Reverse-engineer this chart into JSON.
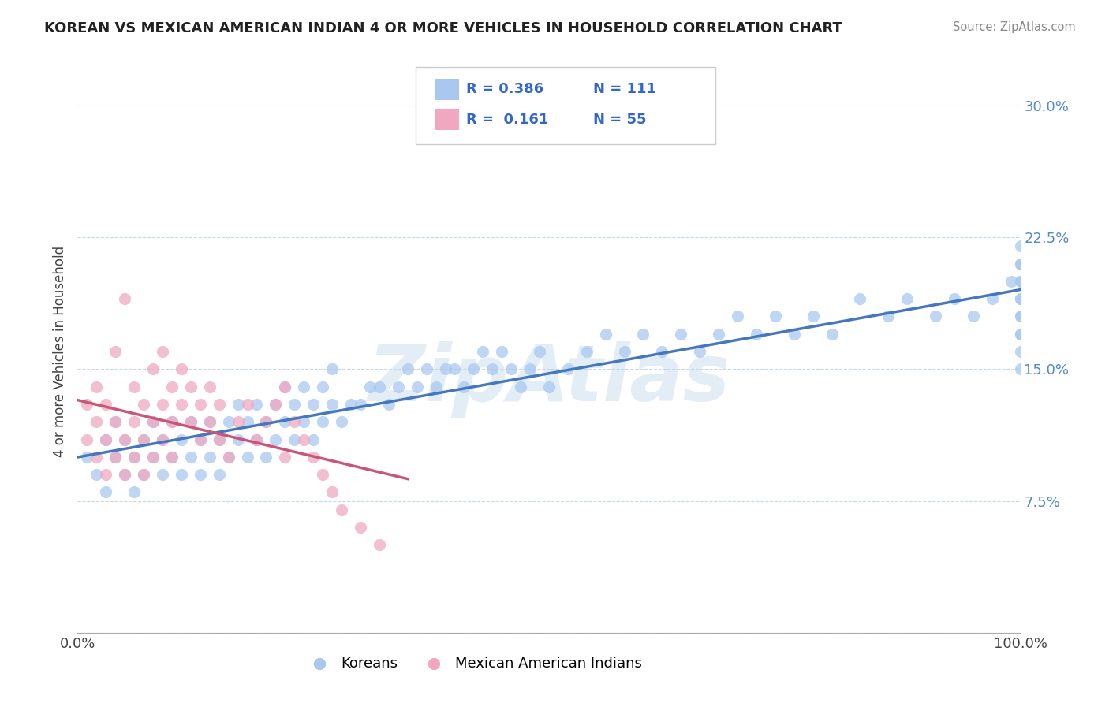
{
  "title": "KOREAN VS MEXICAN AMERICAN INDIAN 4 OR MORE VEHICLES IN HOUSEHOLD CORRELATION CHART",
  "source": "Source: ZipAtlas.com",
  "ylabel": "4 or more Vehicles in Household",
  "watermark": "ZipAtlas",
  "xlim": [
    0,
    100
  ],
  "ylim": [
    0,
    32
  ],
  "yticks": [
    0,
    7.5,
    15.0,
    22.5,
    30.0
  ],
  "yticklabels": [
    "",
    "7.5%",
    "15.0%",
    "22.5%",
    "30.0%"
  ],
  "legend_r1": "R = 0.386",
  "legend_n1": "N = 111",
  "legend_r2": "R =  0.161",
  "legend_n2": "N = 55",
  "korean_color": "#a8c8f0",
  "mexican_color": "#f0a8c0",
  "trend_korean_color": "#4477bb",
  "trend_mexican_color": "#cc5577",
  "background_color": "#ffffff",
  "grid_color": "#c8d8e8",
  "legend_label1": "Koreans",
  "legend_label2": "Mexican American Indians",
  "korean_x": [
    1,
    2,
    3,
    3,
    4,
    4,
    5,
    5,
    6,
    6,
    7,
    7,
    8,
    8,
    9,
    9,
    10,
    10,
    11,
    11,
    12,
    12,
    13,
    13,
    14,
    14,
    15,
    15,
    16,
    16,
    17,
    17,
    18,
    18,
    19,
    19,
    20,
    20,
    21,
    21,
    22,
    22,
    23,
    23,
    24,
    24,
    25,
    25,
    26,
    26,
    27,
    27,
    28,
    29,
    30,
    31,
    32,
    33,
    34,
    35,
    36,
    37,
    38,
    39,
    40,
    41,
    42,
    43,
    44,
    45,
    46,
    47,
    48,
    49,
    50,
    52,
    54,
    56,
    58,
    60,
    62,
    64,
    66,
    68,
    70,
    72,
    74,
    76,
    78,
    80,
    83,
    86,
    88,
    91,
    93,
    95,
    97,
    99,
    100,
    100,
    100,
    100,
    100,
    100,
    100,
    100,
    100,
    100,
    100,
    100,
    100
  ],
  "korean_y": [
    10,
    9,
    11,
    8,
    10,
    12,
    9,
    11,
    8,
    10,
    9,
    11,
    10,
    12,
    9,
    11,
    10,
    12,
    9,
    11,
    10,
    12,
    9,
    11,
    10,
    12,
    9,
    11,
    10,
    12,
    11,
    13,
    10,
    12,
    11,
    13,
    10,
    12,
    11,
    13,
    12,
    14,
    11,
    13,
    12,
    14,
    11,
    13,
    12,
    14,
    13,
    15,
    12,
    13,
    13,
    14,
    14,
    13,
    14,
    15,
    14,
    15,
    14,
    15,
    15,
    14,
    15,
    16,
    15,
    16,
    15,
    14,
    15,
    16,
    14,
    15,
    16,
    17,
    16,
    17,
    16,
    17,
    16,
    17,
    18,
    17,
    18,
    17,
    18,
    17,
    19,
    18,
    19,
    18,
    19,
    18,
    19,
    20,
    15,
    16,
    17,
    18,
    19,
    20,
    21,
    22,
    21,
    20,
    19,
    18,
    17
  ],
  "mexican_x": [
    1,
    1,
    2,
    2,
    2,
    3,
    3,
    3,
    4,
    4,
    4,
    5,
    5,
    5,
    6,
    6,
    6,
    7,
    7,
    7,
    8,
    8,
    8,
    9,
    9,
    9,
    10,
    10,
    10,
    11,
    11,
    12,
    12,
    13,
    13,
    14,
    14,
    15,
    15,
    16,
    17,
    18,
    19,
    20,
    21,
    22,
    22,
    23,
    24,
    25,
    26,
    27,
    28,
    30,
    32
  ],
  "mexican_y": [
    11,
    13,
    10,
    12,
    14,
    9,
    11,
    13,
    10,
    12,
    16,
    9,
    11,
    19,
    10,
    12,
    14,
    9,
    11,
    13,
    10,
    12,
    15,
    11,
    13,
    16,
    12,
    14,
    10,
    13,
    15,
    12,
    14,
    13,
    11,
    14,
    12,
    11,
    13,
    10,
    12,
    13,
    11,
    12,
    13,
    10,
    14,
    12,
    11,
    10,
    9,
    8,
    7,
    6,
    5
  ]
}
